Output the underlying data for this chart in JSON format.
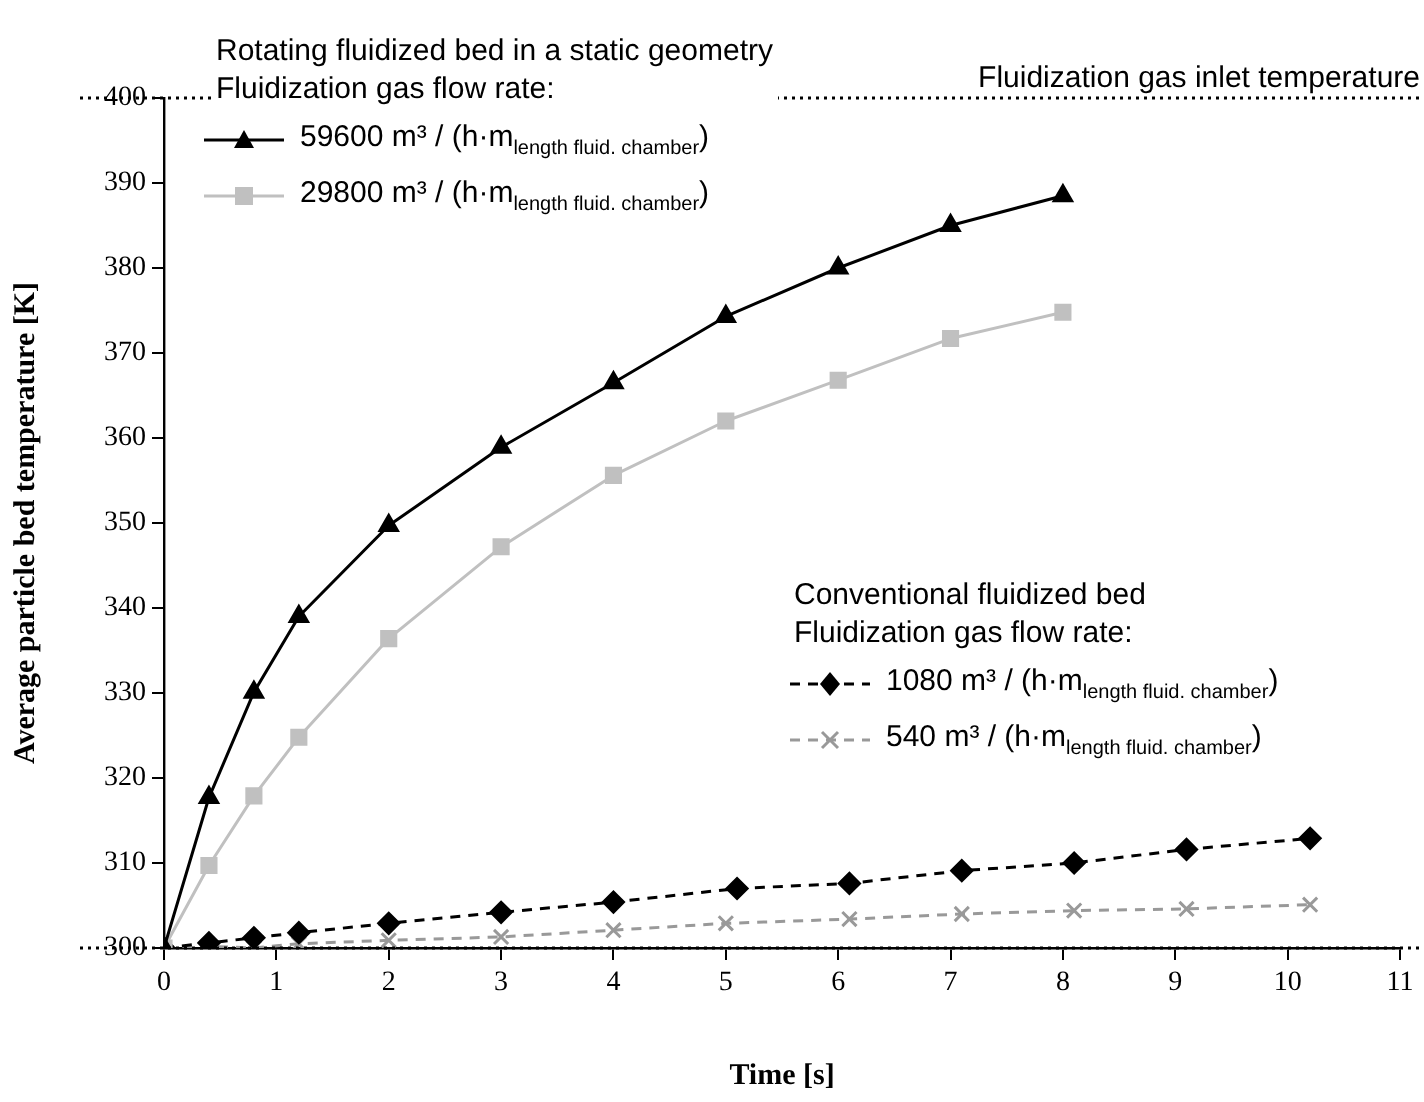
{
  "chart_data": {
    "type": "line",
    "xlabel": "Time [s]",
    "ylabel": "Average particle bed temperature [K]",
    "xlim": [
      0,
      11
    ],
    "xticks": [
      0,
      1,
      2,
      3,
      4,
      5,
      6,
      7,
      8,
      9,
      10,
      11
    ],
    "ylim": [
      300,
      400
    ],
    "yticks": [
      300,
      310,
      320,
      330,
      340,
      350,
      360,
      370,
      380,
      390,
      400
    ],
    "grid": false,
    "legend": "top left",
    "annotations": [
      "Rotating fluidized bed in a static geometry\nFluidization gas flow rate:",
      "Conventional fluidized bed\nFluidization gas flow rate:"
    ],
    "ref_lines": [
      {
        "axis": "y",
        "value": 400,
        "label": "Fluidization gas inlet temperature",
        "line_style": "dotted",
        "color": "#000000"
      },
      {
        "axis": "y",
        "value": 300,
        "label": null,
        "line_style": "dotted",
        "color": "#000000"
      }
    ],
    "series": [
      {
        "name": "59600 m³ / (h·m$_{length fluid. chamber}$)",
        "color": "#000000",
        "marker": "triangle",
        "line_style": "solid",
        "x": [
          0,
          0.4,
          0.8,
          1.2,
          2,
          3,
          4,
          5,
          6,
          7,
          8
        ],
        "values": [
          300,
          317.7,
          330.1,
          339,
          349.7,
          358.9,
          366.5,
          374.3,
          380,
          385,
          388.5
        ]
      },
      {
        "name": "29800 m³ / (h·m$_{length fluid. chamber}$)",
        "color": "#c0c0c0",
        "marker": "square",
        "line_style": "solid",
        "x": [
          0,
          0.4,
          0.8,
          1.2,
          2,
          3,
          4,
          5,
          6,
          7,
          8
        ],
        "values": [
          300,
          309.7,
          317.9,
          324.8,
          336.4,
          347.2,
          355.6,
          362,
          366.8,
          371.7,
          374.8
        ]
      },
      {
        "name": "1080 m³ / (h·m$_{length fluid. chamber}$)",
        "color": "#000000",
        "marker": "diamond",
        "line_style": "dashed",
        "x": [
          0,
          0.4,
          0.8,
          1.2,
          2,
          3,
          4,
          5.1,
          6.1,
          7.1,
          8.1,
          9.1,
          10.2
        ],
        "values": [
          300,
          300.6,
          301.2,
          301.8,
          302.9,
          304.2,
          305.4,
          307,
          307.6,
          309.1,
          310,
          311.6,
          312.9
        ]
      },
      {
        "name": "540 m³ / (h·m$_{length fluid. chamber}$)",
        "color": "#999999",
        "marker": "cross",
        "line_style": "dashed",
        "x": [
          0,
          0.4,
          0.8,
          1.2,
          2,
          3,
          4,
          5,
          6.1,
          7.1,
          8.1,
          9.1,
          10.2
        ],
        "values": [
          300,
          300.2,
          300,
          300.5,
          300.9,
          301.3,
          302.1,
          302.9,
          303.4,
          304,
          304.4,
          304.6,
          305.1
        ]
      }
    ]
  }
}
